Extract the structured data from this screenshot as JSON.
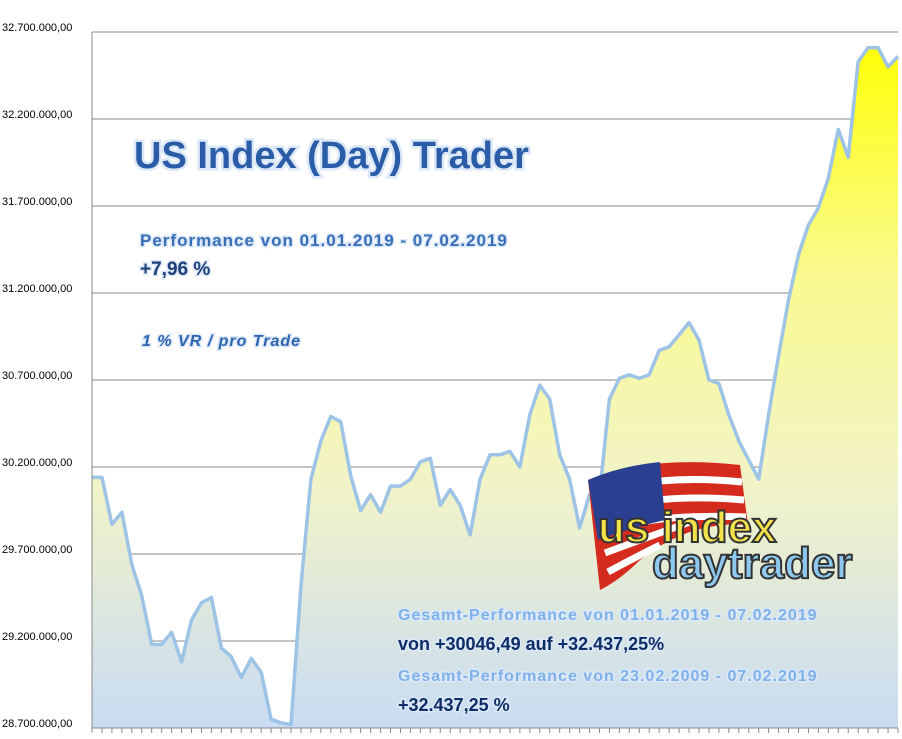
{
  "chart_data": {
    "type": "area",
    "title": "US Index (Day) Trader",
    "annotations": [
      "Performance  von  01.01.2019 - 07.02.2019",
      "+7,96 %",
      "1 % VR / pro Trade",
      "Gesamt-Performance  von  01.01.2019 - 07.02.2019",
      "von +30046,49 auf  +32.437,25%",
      "Gesamt-Performance  von  23.02.2009 - 07.02.2019",
      "+32.437,25 %",
      "us index",
      "daytrader"
    ],
    "values": [
      30140000,
      30140000,
      29870000,
      29940000,
      29640000,
      29460000,
      29180000,
      29180000,
      29250000,
      29080000,
      29320000,
      29420000,
      29450000,
      29160000,
      29110000,
      28990000,
      29100000,
      29020000,
      28750000,
      28730000,
      28720000,
      29520000,
      30130000,
      30350000,
      30490000,
      30460000,
      30150000,
      29950000,
      30040000,
      29940000,
      30090000,
      30090000,
      30130000,
      30230000,
      30250000,
      29980000,
      30070000,
      29980000,
      29810000,
      30130000,
      30270000,
      30270000,
      30290000,
      30200000,
      30500000,
      30670000,
      30590000,
      30270000,
      30130000,
      29850000,
      30040000,
      30040000,
      30590000,
      30710000,
      30730000,
      30710000,
      30730000,
      30870000,
      30890000,
      30960000,
      31030000,
      30930000,
      30700000,
      30680000,
      30500000,
      30350000,
      30240000,
      30130000,
      30500000,
      30840000,
      31160000,
      31420000,
      31590000,
      31690000,
      31860000,
      32140000,
      31980000,
      32530000,
      32610000,
      32610000,
      32500000,
      32560000
    ],
    "color": "#9dc3e6",
    "ylim": [
      28700000,
      32700000
    ],
    "yticks": [
      {
        "value": 28700000,
        "label": "28.700.000,00"
      },
      {
        "value": 29200000,
        "label": "29.200.000,00"
      },
      {
        "value": 29700000,
        "label": "29.700.000,00"
      },
      {
        "value": 30200000,
        "label": "30.200.000,00"
      },
      {
        "value": 30700000,
        "label": "30.700.000,00"
      },
      {
        "value": 31200000,
        "label": "31.200.000,00"
      },
      {
        "value": 31700000,
        "label": "31.700.000,00"
      },
      {
        "value": 32200000,
        "label": "32.200.000,00"
      },
      {
        "value": 32700000,
        "label": "32.700.000,00"
      }
    ],
    "grid": true
  }
}
